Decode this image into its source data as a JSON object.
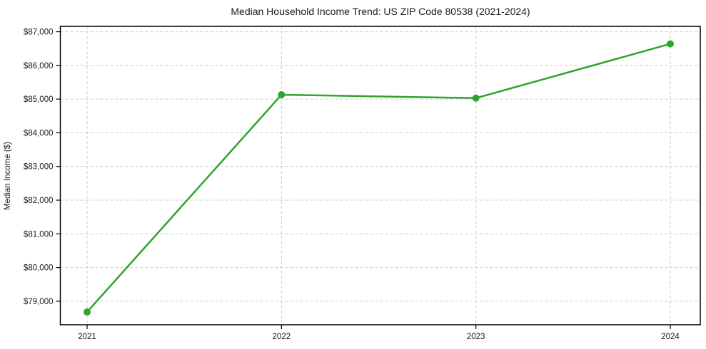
{
  "chart": {
    "colors": {
      "line": "#2ea52e",
      "marker": "#2ea52e",
      "grid": "#cccccc",
      "axis": "#000000",
      "text": "#1a1a1a",
      "background": "#ffffff"
    }
  },
  "chart_data": {
    "type": "line",
    "title": "Median Household Income Trend: US ZIP Code 80538 (2021-2024)",
    "xlabel": "",
    "ylabel": "Median Income ($)",
    "categories": [
      "2021",
      "2022",
      "2023",
      "2024"
    ],
    "series": [
      {
        "name": "Median Household Income",
        "values": [
          78680,
          85130,
          85030,
          86640
        ]
      }
    ],
    "ylim": [
      78300,
      87160
    ],
    "yticks": [
      79000,
      80000,
      81000,
      82000,
      83000,
      84000,
      85000,
      86000,
      87000
    ],
    "ytick_prefix": "$",
    "grid": true,
    "grid_style": "dashed",
    "legend": false,
    "marker": "circle",
    "line_color": "#2ea52e"
  }
}
